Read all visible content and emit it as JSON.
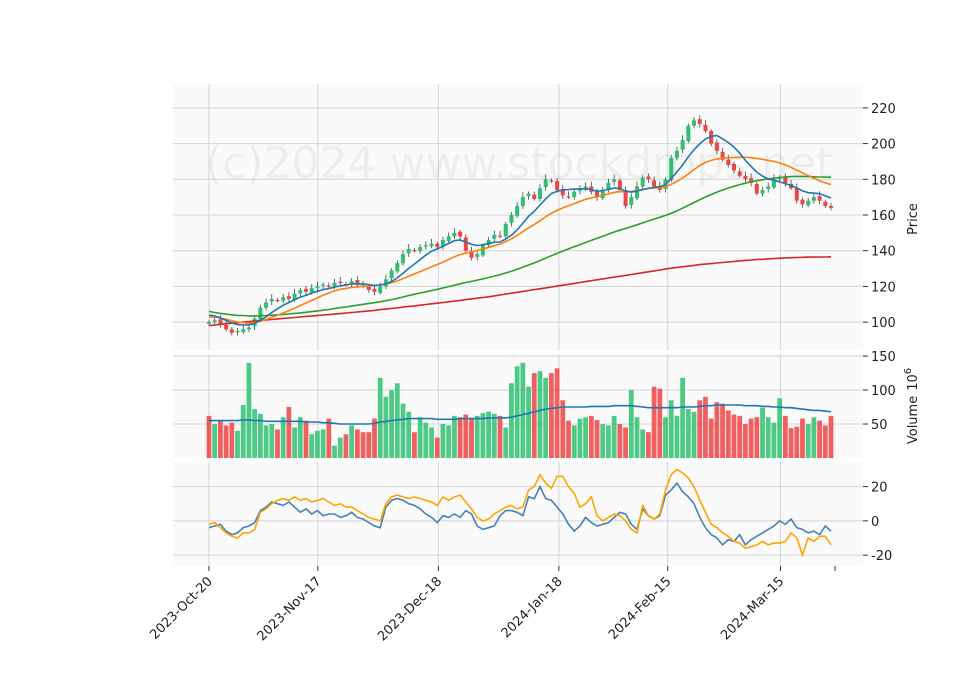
{
  "chart_data": [
    {
      "type": "candlestick",
      "panel": "price",
      "ylabel": "Price",
      "ylim": [
        90,
        230
      ],
      "yticks": [
        100,
        120,
        140,
        160,
        180,
        200,
        220
      ],
      "grid": true,
      "watermark": "(c)2024 www.stockdrops.net",
      "colors": {
        "up": "#2fbf71",
        "down": "#ef4444",
        "ma1": "#1f77b4",
        "ma2": "#ff7f0e",
        "ma3": "#2ca02c",
        "ma4": "#d62728"
      },
      "x_start": "2023-10-20",
      "x_end": "2024-03-28",
      "xticks": [
        "2023-Oct-20",
        "2023-Nov-17",
        "2023-Dec-18",
        "2024-Jan-18",
        "2024-Feb-15",
        "2024-Mar-15"
      ],
      "closes": [
        100,
        101,
        99,
        96,
        94,
        95,
        96,
        97,
        102,
        108,
        111,
        113,
        112,
        114,
        113,
        116,
        118,
        117,
        119,
        120,
        121,
        120,
        122,
        122,
        121,
        123,
        121,
        120,
        118,
        117,
        120,
        124,
        129,
        133,
        138,
        141,
        140,
        142,
        143,
        144,
        142,
        146,
        148,
        150,
        148,
        140,
        136,
        138,
        143,
        146,
        149,
        148,
        155,
        160,
        165,
        170,
        172,
        169,
        175,
        180,
        179,
        174,
        171,
        170,
        173,
        175,
        176,
        173,
        170,
        174,
        178,
        180,
        174,
        165,
        170,
        176,
        181,
        180,
        176,
        174,
        180,
        192,
        196,
        202,
        210,
        213,
        211,
        207,
        200,
        196,
        191,
        188,
        185,
        182,
        180,
        178,
        172,
        174,
        176,
        180,
        181,
        178,
        175,
        168,
        166,
        168,
        170,
        168,
        165,
        164
      ],
      "ma_short": [
        104,
        103.5,
        102.4,
        101,
        99.5,
        98.6,
        98.4,
        98.5,
        99.3,
        101,
        103,
        105.4,
        107.5,
        109.5,
        111,
        112.6,
        114,
        115,
        116.3,
        117.3,
        118.2,
        118.8,
        119.6,
        120.3,
        120.8,
        121.4,
        121.5,
        121.4,
        121,
        120.6,
        120.8,
        121.4,
        122.8,
        124.8,
        127.4,
        130.1,
        132.5,
        135,
        137.5,
        139.8,
        141,
        142.5,
        144.1,
        145.6,
        146,
        144.9,
        143.6,
        142.9,
        143.3,
        144.1,
        144.7,
        144.9,
        146.5,
        148.7,
        151.6,
        155.4,
        159.3,
        162.1,
        165.6,
        169,
        172,
        173.3,
        174.1,
        174.2,
        174.5,
        174.6,
        174.7,
        174.2,
        173.3,
        173.7,
        174.4,
        175.1,
        174.9,
        173.3,
        172.8,
        173.4,
        174.2,
        174.9,
        175.5,
        175.9,
        177,
        180.4,
        184.1,
        188,
        192.6,
        196.5,
        199.9,
        202.6,
        204,
        204.5,
        202.6,
        200.6,
        198,
        194.6,
        190.6,
        187.2,
        184,
        181.8,
        180.1,
        179.5,
        178.6,
        177.6,
        176.6,
        175.1,
        173.5,
        172.5,
        172.3,
        171.9,
        170.8,
        169.5
      ],
      "ma_mid": [
        103,
        102.8,
        102.3,
        101.7,
        100.8,
        100,
        99.7,
        99.4,
        99.8,
        100.6,
        101.5,
        102.7,
        103.9,
        105.2,
        106.4,
        107.8,
        109.3,
        110.7,
        112.2,
        113.6,
        115.1,
        116.3,
        117.5,
        118.4,
        118.9,
        119.4,
        119.8,
        120.2,
        120.3,
        120.5,
        120.8,
        121.3,
        122.1,
        123.1,
        124.4,
        125.7,
        127,
        128.3,
        129.6,
        131,
        132.3,
        133.6,
        135.1,
        136.6,
        137.8,
        138.7,
        139.4,
        140.1,
        140.9,
        141.9,
        142.8,
        143.7,
        145.1,
        146.7,
        148.6,
        150.7,
        152.8,
        154.7,
        156.8,
        159,
        161,
        162.6,
        164,
        165.2,
        166.4,
        167.6,
        168.8,
        169.6,
        170.2,
        170.9,
        171.8,
        172.7,
        173.1,
        173,
        173.2,
        173.7,
        174.4,
        174.9,
        175.1,
        175.2,
        175.9,
        177.2,
        178.8,
        180.7,
        183,
        185.4,
        187.7,
        189.5,
        190.6,
        191.4,
        191.8,
        192.1,
        192.2,
        192.3,
        192.3,
        192.1,
        191.7,
        191.2,
        190.6,
        190,
        189.2,
        188,
        186.7,
        185.1,
        183.6,
        182,
        180.5,
        179.2,
        178,
        177
      ],
      "ma_long": [
        106,
        105.4,
        104.9,
        104.5,
        104.1,
        103.8,
        103.7,
        103.5,
        103.5,
        103.6,
        103.7,
        103.9,
        104.1,
        104.3,
        104.6,
        104.9,
        105.2,
        105.5,
        105.9,
        106.3,
        106.7,
        107.1,
        107.6,
        108.1,
        108.5,
        109,
        109.5,
        110,
        110.5,
        110.9,
        111.4,
        112,
        112.6,
        113.3,
        114.1,
        114.9,
        115.6,
        116.3,
        117,
        117.7,
        118.4,
        119.1,
        119.9,
        120.7,
        121.5,
        122.2,
        122.8,
        123.5,
        124.2,
        125,
        125.8,
        126.6,
        127.5,
        128.5,
        129.6,
        130.8,
        132,
        133.2,
        134.5,
        135.8,
        137.2,
        138.5,
        139.8,
        141,
        142.2,
        143.4,
        144.6,
        145.8,
        146.9,
        148.1,
        149.3,
        150.5,
        151.5,
        152.5,
        153.5,
        154.5,
        155.6,
        156.7,
        157.7,
        158.7,
        159.8,
        161,
        162.3,
        163.8,
        165.4,
        167,
        168.6,
        170.1,
        171.5,
        172.8,
        174,
        175.1,
        176.1,
        177,
        177.8,
        178.6,
        179.2,
        179.7,
        180.2,
        180.6,
        181,
        181.3,
        181.5,
        181.6,
        181.6,
        181.5,
        181.4,
        181.3,
        181.2,
        181.1
      ],
      "ma_very_long": [
        98,
        98.4,
        98.8,
        99.1,
        99.4,
        99.7,
        100,
        100.3,
        100.6,
        100.9,
        101.2,
        101.5,
        101.8,
        102.1,
        102.3,
        102.6,
        102.9,
        103.2,
        103.4,
        103.7,
        104,
        104.2,
        104.5,
        104.8,
        105.1,
        105.4,
        105.7,
        106,
        106.3,
        106.6,
        107,
        107.3,
        107.7,
        108,
        108.4,
        108.8,
        109.1,
        109.5,
        109.9,
        110.3,
        110.6,
        111,
        111.4,
        111.8,
        112.2,
        112.6,
        113,
        113.4,
        113.8,
        114.2,
        114.7,
        115.2,
        115.7,
        116.2,
        116.7,
        117.2,
        117.7,
        118.2,
        118.7,
        119.2,
        119.7,
        120.2,
        120.7,
        121.2,
        121.7,
        122.2,
        122.7,
        123.2,
        123.7,
        124.2,
        124.7,
        125.2,
        125.7,
        126.2,
        126.7,
        127.2,
        127.7,
        128.2,
        128.7,
        129.2,
        129.7,
        130.2,
        130.6,
        131,
        131.4,
        131.8,
        132.2,
        132.5,
        132.8,
        133.1,
        133.4,
        133.7,
        134,
        134.3,
        134.6,
        134.8,
        135,
        135.2,
        135.4,
        135.6,
        135.8,
        136,
        136.1,
        136.2,
        136.3,
        136.4,
        136.4,
        136.5,
        136.5,
        136.6
      ]
    },
    {
      "type": "bar",
      "panel": "volume",
      "ylabel": "Volume",
      "ylabel_exponent": "10",
      "ylabel_exponent_power": "6",
      "ylim": [
        0,
        150
      ],
      "yticks": [
        50,
        100,
        150
      ],
      "grid": true,
      "colors": {
        "up": "#2fbf71",
        "down": "#ef4444",
        "avg": "#1f77b4"
      },
      "values": [
        62,
        50,
        55,
        48,
        52,
        40,
        78,
        140,
        72,
        65,
        48,
        50,
        42,
        60,
        75,
        45,
        60,
        55,
        35,
        40,
        42,
        58,
        18,
        30,
        35,
        48,
        42,
        38,
        38,
        58,
        118,
        90,
        100,
        110,
        80,
        68,
        38,
        60,
        52,
        45,
        30,
        50,
        48,
        62,
        60,
        64,
        58,
        62,
        66,
        68,
        65,
        62,
        45,
        110,
        135,
        140,
        105,
        125,
        128,
        118,
        125,
        132,
        85,
        55,
        48,
        58,
        60,
        62,
        56,
        50,
        48,
        62,
        50,
        45,
        100,
        60,
        42,
        38,
        105,
        102,
        60,
        85,
        62,
        118,
        72,
        68,
        85,
        90,
        58,
        82,
        80,
        70,
        64,
        62,
        50,
        58,
        60,
        74,
        60,
        52,
        88,
        62,
        44,
        46,
        58,
        50,
        60,
        55,
        48,
        62
      ],
      "volume_ma": [
        55,
        55,
        55,
        55,
        55,
        55,
        56,
        56,
        55,
        55,
        54,
        54,
        54,
        54,
        54,
        54,
        54,
        53,
        53,
        53,
        52,
        52,
        51,
        50,
        50,
        50,
        50,
        50,
        50,
        51,
        53,
        54,
        55,
        56,
        57,
        58,
        58,
        58,
        58,
        58,
        57,
        57,
        57,
        57,
        58,
        58,
        58,
        58,
        58,
        59,
        59,
        59,
        59,
        60,
        62,
        64,
        66,
        68,
        70,
        72,
        73,
        74,
        75,
        75,
        75,
        75,
        75,
        76,
        76,
        76,
        76,
        77,
        77,
        77,
        77,
        76,
        75,
        74,
        74,
        74,
        74,
        74,
        74,
        75,
        75,
        75,
        76,
        77,
        77,
        78,
        78,
        78,
        78,
        78,
        77,
        77,
        77,
        76,
        76,
        75,
        75,
        74,
        74,
        73,
        72,
        71,
        70,
        70,
        69,
        68
      ]
    },
    {
      "type": "line",
      "panel": "indicator",
      "ylim": [
        -24,
        32
      ],
      "yticks": [
        -20,
        0,
        20
      ],
      "grid": true,
      "series": [
        {
          "color": "#4682b4",
          "values": [
            -4,
            -3,
            -2,
            -6,
            -8,
            -7,
            -4,
            -3,
            -1,
            6,
            8,
            11,
            10,
            9,
            11,
            8,
            5,
            7,
            4,
            6,
            3,
            4,
            4,
            2,
            3,
            5,
            2,
            1,
            -1,
            -3,
            -4,
            8,
            12,
            13,
            12,
            10,
            9,
            7,
            4,
            2,
            -1,
            3,
            2,
            4,
            2,
            6,
            4,
            -3,
            -5,
            -4,
            -3,
            3,
            6,
            6,
            5,
            3,
            14,
            13,
            20,
            13,
            12,
            8,
            4,
            -2,
            -6,
            -3,
            2,
            -1,
            -3,
            -2,
            -1,
            2,
            5,
            4,
            -2,
            -5,
            7,
            3,
            1,
            3,
            15,
            18,
            22,
            17,
            14,
            10,
            2,
            -4,
            -8,
            -10,
            -14,
            -11,
            -12,
            -8,
            -14,
            -11,
            -9,
            -7,
            -5,
            -3,
            0,
            -2,
            1,
            -4,
            -5,
            -7,
            -6,
            -8,
            -3,
            -6
          ]
        },
        {
          "color": "#ffa500",
          "values": [
            -2,
            -1,
            -4,
            -7,
            -9,
            -10,
            -7,
            -7,
            -5,
            5,
            7,
            10,
            12,
            13,
            12,
            14,
            12,
            13,
            11,
            12,
            13,
            11,
            9,
            10,
            8,
            8,
            6,
            4,
            2,
            1,
            0,
            10,
            14,
            15,
            14,
            13,
            14,
            13,
            12,
            11,
            9,
            14,
            12,
            14,
            15,
            11,
            7,
            2,
            0,
            1,
            4,
            6,
            8,
            9,
            7,
            8,
            18,
            20,
            27,
            22,
            19,
            26,
            26,
            20,
            16,
            8,
            10,
            14,
            3,
            0,
            2,
            4,
            3,
            0,
            -5,
            -7,
            9,
            3,
            1,
            4,
            18,
            27,
            30,
            28,
            25,
            20,
            12,
            5,
            -2,
            -4,
            -7,
            -9,
            -12,
            -13,
            -16,
            -15,
            -14,
            -12,
            -14,
            -13,
            -13,
            -12,
            -7,
            -10,
            -20,
            -10,
            -12,
            -9,
            -9,
            -14
          ]
        }
      ]
    }
  ]
}
